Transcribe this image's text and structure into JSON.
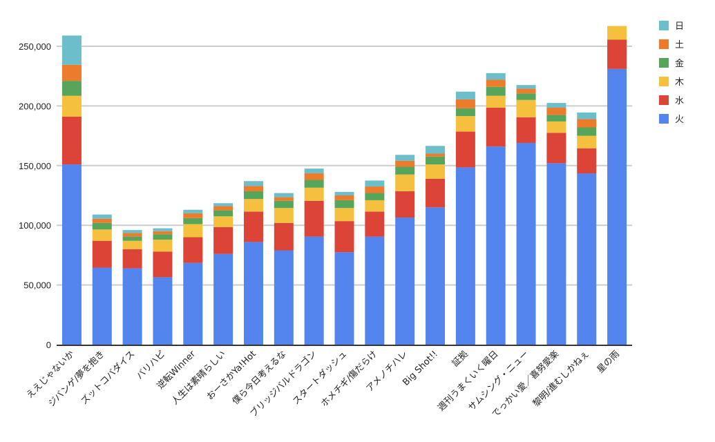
{
  "chart_data": {
    "type": "bar",
    "stacked": true,
    "grid": true,
    "legend_position": "right",
    "ylim": [
      0,
      270000
    ],
    "yticks": [
      "0",
      "50,000",
      "100,000",
      "150,000",
      "200,000",
      "250,000"
    ],
    "ytick_values": [
      0,
      50000,
      100000,
      150000,
      200000,
      250000
    ],
    "categories": [
      "ええじゃないか",
      "ジバンゲ/夢を抱き",
      "ズットコバダイス",
      "バリハピ",
      "逆転Winner",
      "人生は素晴らしい",
      "おーさかYa!Hot",
      "僕ら今日考えるな",
      "ブリッジバルドラゴン",
      "スタートダッシュ",
      "ホメチギ/傷だらけ",
      "アメノチハレ",
      "Big Shot!!",
      "証拠",
      "週刊うまくいく曜日",
      "サムシング・ニュー",
      "でっかい愛／喜努愛楽",
      "黎明/進むしかねぇ",
      "星の雨"
    ],
    "series": [
      {
        "name": "火",
        "color": "#5484ed",
        "values": [
          151000,
          64500,
          64000,
          56500,
          68500,
          76000,
          86000,
          79000,
          90500,
          77500,
          90500,
          106500,
          115000,
          148500,
          166000,
          169000,
          152000,
          143500,
          231000
        ]
      },
      {
        "name": "水",
        "color": "#db4437",
        "values": [
          40000,
          22500,
          16000,
          21500,
          21500,
          22500,
          25500,
          23000,
          30000,
          26000,
          21000,
          22000,
          24000,
          30000,
          32500,
          21500,
          25500,
          21000,
          24500
        ]
      },
      {
        "name": "木",
        "color": "#f4c03e",
        "values": [
          17500,
          9500,
          7000,
          10000,
          11000,
          9000,
          10500,
          12500,
          11000,
          11000,
          9500,
          14000,
          12000,
          13000,
          10000,
          14500,
          9500,
          10500,
          11500
        ]
      },
      {
        "name": "金",
        "color": "#57a55a",
        "values": [
          12500,
          5500,
          3500,
          4500,
          5000,
          5000,
          6500,
          6000,
          6500,
          6500,
          6000,
          6500,
          6500,
          6500,
          7500,
          5500,
          5500,
          7000,
          0
        ]
      },
      {
        "name": "土",
        "color": "#ec7b2c",
        "values": [
          13500,
          3500,
          3000,
          2500,
          4000,
          3500,
          4500,
          3000,
          5500,
          4000,
          5500,
          5000,
          2500,
          7500,
          6000,
          4000,
          6000,
          7000,
          0
        ]
      },
      {
        "name": "日",
        "color": "#6cbfca",
        "values": [
          24500,
          3500,
          2500,
          2500,
          3000,
          2500,
          4000,
          3500,
          4000,
          3000,
          5000,
          5000,
          6500,
          6500,
          5500,
          3000,
          4000,
          5500,
          0
        ]
      }
    ]
  },
  "colors": {
    "grid": "#cccccc",
    "axis": "#333333",
    "text": "#222222"
  }
}
